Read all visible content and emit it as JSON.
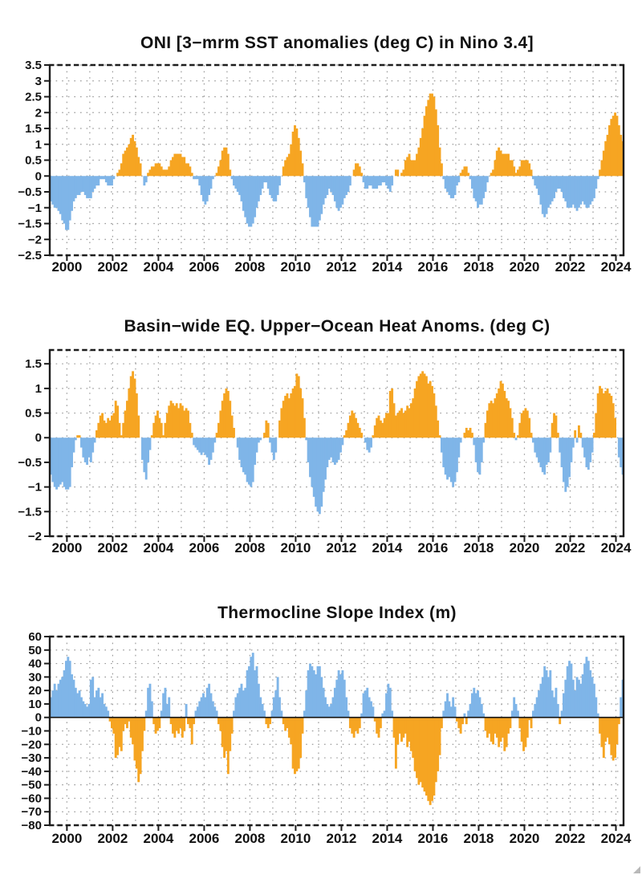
{
  "page": {
    "background": "#ffffff"
  },
  "misc": {
    "corner_mark_icon": "cursor-arrow-icon"
  },
  "chart_data": [
    {
      "type": "bar",
      "title": "ONI [3−mrm SST anomalies (deg C) in Nino 3.4]",
      "ylabel": "",
      "xlabel": "",
      "ylim": [
        -2.5,
        3.5
      ],
      "xlim": [
        1999.25,
        2024.3333
      ],
      "grid": true,
      "ytick_values": [
        3.5,
        3,
        2.5,
        2,
        1.5,
        1,
        0.5,
        0,
        -0.5,
        -1,
        -1.5,
        -2,
        -2.5
      ],
      "ytick_labels": [
        "3.5",
        "3",
        "2.5",
        "2",
        "1.5",
        "1",
        "0.5",
        "0",
        "−0.5",
        "−1",
        "−1.5",
        "−2",
        "−2.5"
      ],
      "xtick_values": [
        2000,
        2002,
        2004,
        2006,
        2008,
        2010,
        2012,
        2014,
        2016,
        2018,
        2020,
        2022,
        2024
      ],
      "xtick_labels": [
        "2000",
        "2002",
        "2004",
        "2006",
        "2008",
        "2010",
        "2012",
        "2014",
        "2016",
        "2018",
        "2020",
        "2022",
        "2024"
      ],
      "grid_year_start": 2000,
      "grid_year_end": 2024,
      "positive_color": "#F6A522",
      "negative_color": "#7FB5E8",
      "zero_line": false,
      "series_start": {
        "year": 1999,
        "month": 4
      },
      "values": [
        [
          -0.8,
          -0.9,
          -1.0,
          -1.0,
          -1.1,
          -1.2,
          -1.4,
          -1.5,
          -1.7
        ],
        [
          -1.7,
          -1.4,
          -1.1,
          -0.8,
          -0.7,
          -0.6,
          -0.6,
          -0.5,
          -0.5,
          -0.6,
          -0.7,
          -0.7
        ],
        [
          -0.7,
          -0.5,
          -0.4,
          -0.3,
          -0.3,
          -0.1,
          -0.1,
          -0.1,
          -0.2,
          -0.3,
          -0.3,
          -0.3
        ],
        [
          -0.1,
          0.0,
          0.1,
          0.2,
          0.4,
          0.7,
          0.8,
          0.9,
          1.0,
          1.2,
          1.3,
          1.1
        ],
        [
          0.9,
          0.6,
          0.4,
          0.0,
          -0.3,
          -0.2,
          0.1,
          0.2,
          0.3,
          0.3,
          0.4,
          0.4
        ],
        [
          0.4,
          0.3,
          0.2,
          0.2,
          0.2,
          0.3,
          0.5,
          0.6,
          0.7,
          0.7,
          0.7,
          0.7
        ],
        [
          0.6,
          0.6,
          0.4,
          0.4,
          0.3,
          0.1,
          -0.1,
          -0.1,
          -0.1,
          -0.3,
          -0.6,
          -0.8
        ],
        [
          -0.9,
          -0.8,
          -0.6,
          -0.4,
          -0.1,
          0.0,
          0.1,
          0.3,
          0.5,
          0.8,
          0.9,
          0.9
        ],
        [
          0.7,
          0.2,
          -0.1,
          -0.3,
          -0.4,
          -0.5,
          -0.6,
          -0.8,
          -1.1,
          -1.3,
          -1.5,
          -1.6
        ],
        [
          -1.6,
          -1.5,
          -1.3,
          -1.0,
          -0.8,
          -0.6,
          -0.4,
          -0.2,
          -0.2,
          -0.4,
          -0.6,
          -0.7
        ],
        [
          -0.8,
          -0.8,
          -0.6,
          -0.3,
          0.0,
          0.3,
          0.5,
          0.6,
          0.7,
          1.0,
          1.4,
          1.6
        ],
        [
          1.5,
          1.2,
          0.8,
          0.4,
          -0.2,
          -0.7,
          -1.0,
          -1.3,
          -1.6,
          -1.6,
          -1.6,
          -1.6
        ],
        [
          -1.4,
          -1.2,
          -0.9,
          -0.7,
          -0.6,
          -0.4,
          -0.5,
          -0.6,
          -0.8,
          -1.0,
          -1.1,
          -1.0
        ],
        [
          -0.9,
          -0.7,
          -0.6,
          -0.5,
          -0.3,
          0.0,
          0.2,
          0.4,
          0.4,
          0.3,
          0.1,
          -0.2
        ],
        [
          -0.4,
          -0.4,
          -0.3,
          -0.3,
          -0.4,
          -0.4,
          -0.4,
          -0.3,
          -0.3,
          -0.2,
          -0.2,
          -0.3
        ],
        [
          -0.4,
          -0.5,
          -0.3,
          0.0,
          0.2,
          0.2,
          0.0,
          0.1,
          0.2,
          0.5,
          0.6,
          0.7
        ],
        [
          0.5,
          0.5,
          0.5,
          0.7,
          0.9,
          1.2,
          1.5,
          1.9,
          2.2,
          2.4,
          2.6,
          2.6
        ],
        [
          2.5,
          2.1,
          1.6,
          0.9,
          0.4,
          -0.1,
          -0.4,
          -0.5,
          -0.6,
          -0.7,
          -0.7,
          -0.6
        ],
        [
          -0.3,
          -0.2,
          0.1,
          0.2,
          0.3,
          0.3,
          0.1,
          -0.1,
          -0.4,
          -0.7,
          -0.8,
          -1.0
        ],
        [
          -0.9,
          -0.9,
          -0.7,
          -0.5,
          -0.2,
          0.0,
          0.1,
          0.2,
          0.5,
          0.8,
          0.9,
          0.8
        ],
        [
          0.7,
          0.7,
          0.7,
          0.7,
          0.5,
          0.5,
          0.3,
          0.1,
          0.2,
          0.3,
          0.5,
          0.5
        ],
        [
          0.5,
          0.5,
          0.4,
          0.2,
          -0.1,
          -0.3,
          -0.4,
          -0.6,
          -0.9,
          -1.2,
          -1.3,
          -1.2
        ],
        [
          -1.0,
          -0.9,
          -0.8,
          -0.7,
          -0.5,
          -0.4,
          -0.4,
          -0.5,
          -0.7,
          -0.8,
          -1.0,
          -1.0
        ],
        [
          -1.0,
          -0.9,
          -1.0,
          -1.1,
          -1.0,
          -0.9,
          -0.8,
          -0.9,
          -1.0,
          -1.0,
          -0.9,
          -0.8
        ],
        [
          -0.7,
          -0.4,
          -0.1,
          0.2,
          0.5,
          0.8,
          1.1,
          1.3,
          1.6,
          1.8,
          1.9,
          2.0
        ],
        [
          1.9,
          1.6,
          1.3,
          1.1
        ]
      ]
    },
    {
      "type": "bar",
      "title": "Basin−wide EQ. Upper−Ocean Heat Anoms. (deg C)",
      "ylabel": "",
      "xlabel": "",
      "ylim": [
        -2,
        1.78
      ],
      "xlim": [
        1999.25,
        2024.3333
      ],
      "grid": true,
      "ytick_values": [
        1.5,
        1,
        0.5,
        0,
        -0.5,
        -1,
        -1.5,
        -2
      ],
      "ytick_labels": [
        "1.5",
        "1",
        "0.5",
        "0",
        "−0.5",
        "−1",
        "−1.5",
        "−2"
      ],
      "xtick_values": [
        2000,
        2002,
        2004,
        2006,
        2008,
        2010,
        2012,
        2014,
        2016,
        2018,
        2020,
        2022,
        2024
      ],
      "xtick_labels": [
        "2000",
        "2002",
        "2004",
        "2006",
        "2008",
        "2010",
        "2012",
        "2014",
        "2016",
        "2018",
        "2020",
        "2022",
        "2024"
      ],
      "grid_year_start": 2000,
      "grid_year_end": 2024,
      "positive_color": "#F6A522",
      "negative_color": "#7FB5E8",
      "zero_line": false,
      "series_start": {
        "year": 1999,
        "month": 4
      },
      "values": [
        [
          -0.75,
          -0.9,
          -1.0,
          -1.05,
          -1.0,
          -0.95,
          -0.9,
          -1.0,
          -1.05
        ],
        [
          -1.05,
          -1.0,
          -0.6,
          -0.3,
          -0.05,
          0.05,
          0.05,
          -0.2,
          -0.4,
          -0.5,
          -0.55,
          -0.4
        ],
        [
          -0.5,
          -0.3,
          -0.1,
          0.15,
          0.3,
          0.45,
          0.5,
          0.35,
          0.3,
          0.4,
          0.35,
          0.45
        ],
        [
          0.5,
          0.75,
          0.65,
          0.3,
          0.05,
          0.3,
          0.55,
          0.75,
          1.0,
          1.25,
          1.35,
          1.2
        ],
        [
          0.9,
          0.45,
          0.0,
          -0.45,
          -0.7,
          -0.85,
          -0.5,
          -0.25,
          0.05,
          0.3,
          0.45,
          0.55
        ],
        [
          0.4,
          0.3,
          0.05,
          0.3,
          0.5,
          0.65,
          0.75,
          0.7,
          0.65,
          0.7,
          0.6,
          0.7
        ],
        [
          0.65,
          0.55,
          0.6,
          0.55,
          0.3,
          0.1,
          -0.15,
          -0.2,
          -0.25,
          -0.3,
          -0.35,
          -0.3
        ],
        [
          -0.35,
          -0.4,
          -0.55,
          -0.45,
          -0.3,
          -0.1,
          0.1,
          0.3,
          0.55,
          0.75,
          0.9,
          1.0
        ],
        [
          0.95,
          0.75,
          0.45,
          0.2,
          0.0,
          -0.2,
          -0.45,
          -0.6,
          -0.7,
          -0.75,
          -0.9,
          -0.95
        ],
        [
          -1.0,
          -0.9,
          -0.55,
          -0.3,
          -0.1,
          -0.05,
          0.0,
          0.1,
          0.35,
          0.3,
          -0.1,
          -0.3
        ],
        [
          -0.45,
          -0.3,
          0.0,
          0.35,
          0.6,
          0.75,
          0.85,
          0.9,
          0.8,
          0.9,
          1.0,
          1.05
        ],
        [
          1.3,
          1.25,
          1.0,
          0.8,
          0.4,
          -0.05,
          -0.5,
          -0.8,
          -1.0,
          -1.2,
          -1.4,
          -1.5
        ],
        [
          -1.55,
          -1.4,
          -1.1,
          -0.85,
          -0.6,
          -0.45,
          -0.4,
          -0.5,
          -0.55,
          -0.5,
          -0.45,
          -0.3
        ],
        [
          -0.15,
          0.05,
          0.15,
          0.3,
          0.45,
          0.55,
          0.5,
          0.4,
          0.3,
          0.2,
          0.1,
          0.0
        ],
        [
          -0.1,
          -0.25,
          -0.3,
          -0.2,
          0.05,
          0.25,
          0.4,
          0.45,
          0.35,
          0.3,
          0.4,
          0.5
        ],
        [
          0.5,
          0.95,
          1.0,
          0.7,
          0.45,
          0.5,
          0.55,
          0.6,
          0.5,
          0.55,
          0.65,
          0.6
        ],
        [
          0.7,
          0.8,
          1.0,
          1.15,
          1.25,
          1.3,
          1.35,
          1.3,
          1.25,
          1.1,
          1.15,
          1.05
        ],
        [
          0.9,
          0.65,
          0.35,
          0.05,
          -0.3,
          -0.6,
          -0.75,
          -0.85,
          -0.8,
          -0.9,
          -1.0,
          -0.9
        ],
        [
          -0.7,
          -0.4,
          -0.1,
          0.0,
          0.1,
          0.2,
          0.15,
          0.2,
          0.1,
          -0.15,
          -0.5,
          -0.7
        ],
        [
          -0.75,
          -0.5,
          -0.1,
          0.3,
          0.55,
          0.7,
          0.75,
          0.7,
          0.8,
          0.9,
          1.0,
          1.15
        ],
        [
          1.1,
          0.95,
          0.8,
          0.75,
          0.6,
          0.4,
          0.1,
          -0.05,
          0.05,
          0.3,
          0.5,
          0.55
        ],
        [
          0.6,
          0.55,
          0.4,
          0.1,
          -0.1,
          -0.3,
          -0.4,
          -0.5,
          -0.6,
          -0.7,
          -0.75,
          -0.55
        ],
        [
          -0.5,
          -0.3,
          0.3,
          0.5,
          0.45,
          0.1,
          -0.3,
          -0.6,
          -0.9,
          -1.1,
          -1.0,
          -0.8
        ],
        [
          -0.5,
          -0.2,
          0.15,
          -0.1,
          0.25,
          0.1,
          -0.2,
          -0.4,
          -0.6,
          -0.65,
          -0.5,
          -0.3
        ],
        [
          0.1,
          0.5,
          0.9,
          1.05,
          1.0,
          0.9,
          0.95,
          1.0,
          0.9,
          0.85,
          0.7,
          0.4
        ],
        [
          0.0,
          -0.4,
          -0.6,
          -0.75
        ]
      ]
    },
    {
      "type": "bar",
      "title": "Thermocline Slope Index (m)",
      "ylabel": "",
      "xlabel": "",
      "ylim": [
        -80,
        60
      ],
      "xlim": [
        1999.25,
        2024.3333
      ],
      "grid": true,
      "ytick_values": [
        60,
        50,
        40,
        30,
        20,
        10,
        0,
        -10,
        -20,
        -30,
        -40,
        -50,
        -60,
        -70,
        -80
      ],
      "ytick_labels": [
        "60",
        "50",
        "40",
        "30",
        "20",
        "10",
        "0",
        "−10",
        "−20",
        "−30",
        "−40",
        "−50",
        "−60",
        "−70",
        "−80"
      ],
      "xtick_values": [
        2000,
        2002,
        2004,
        2006,
        2008,
        2010,
        2012,
        2014,
        2016,
        2018,
        2020,
        2022,
        2024
      ],
      "xtick_labels": [
        "2000",
        "2002",
        "2004",
        "2006",
        "2008",
        "2010",
        "2012",
        "2014",
        "2016",
        "2018",
        "2020",
        "2022",
        "2024"
      ],
      "grid_year_start": 2000,
      "grid_year_end": 2024,
      "positive_color": "#7FB5E8",
      "negative_color": "#F6A522",
      "zero_line": true,
      "series_start": {
        "year": 1999,
        "month": 4
      },
      "values": [
        [
          15,
          20,
          25,
          20,
          25,
          28,
          30,
          35,
          42
        ],
        [
          45,
          42,
          32,
          28,
          22,
          18,
          20,
          15,
          12,
          10,
          8,
          10
        ],
        [
          28,
          30,
          15,
          20,
          22,
          15,
          18,
          10,
          8,
          5,
          -3,
          -8
        ],
        [
          -12,
          -30,
          -28,
          -22,
          -25,
          -10,
          -5,
          -8,
          -3,
          -15,
          -20,
          -32
        ],
        [
          -38,
          -48,
          -42,
          -25,
          -10,
          5,
          22,
          25,
          12,
          -5,
          -12,
          -10
        ],
        [
          -8,
          5,
          18,
          22,
          10,
          15,
          -5,
          -12,
          -15,
          -10,
          -12,
          -8
        ],
        [
          -15,
          -10,
          10,
          -5,
          -8,
          -20,
          -5,
          5,
          8,
          12,
          15,
          18
        ],
        [
          15,
          22,
          25,
          18,
          12,
          8,
          5,
          -5,
          -10,
          -22,
          -30,
          -25
        ],
        [
          -42,
          -25,
          -12,
          5,
          15,
          18,
          22,
          25,
          20,
          22,
          35,
          38
        ],
        [
          45,
          48,
          35,
          38,
          25,
          15,
          10,
          5,
          -5,
          -8,
          -5,
          5
        ],
        [
          15,
          20,
          30,
          15,
          5,
          -5,
          -10,
          -8,
          -15,
          -20,
          -38,
          -42
        ],
        [
          -40,
          -38,
          -30,
          -12,
          5,
          20,
          35,
          40,
          38,
          35,
          32,
          38
        ],
        [
          38,
          30,
          22,
          15,
          10,
          8,
          10,
          15,
          22,
          28,
          35,
          32
        ],
        [
          35,
          28,
          15,
          5,
          -8,
          -12,
          -15,
          -10,
          -12,
          -8,
          3,
          18
        ],
        [
          20,
          22,
          15,
          12,
          8,
          -3,
          -12,
          -15,
          -8,
          3,
          5,
          18
        ],
        [
          25,
          22,
          5,
          -15,
          -38,
          -20,
          -12,
          -18,
          -15,
          -12,
          -22,
          -18
        ],
        [
          -25,
          -30,
          -40,
          -45,
          -50,
          -48,
          -52,
          -55,
          -58,
          -62,
          -65,
          -62
        ],
        [
          -58,
          -48,
          -40,
          -28,
          -8,
          5,
          12,
          18,
          12,
          8,
          15,
          8
        ],
        [
          -3,
          -8,
          -12,
          -5,
          3,
          -5,
          5,
          10,
          18,
          22,
          18,
          20
        ],
        [
          15,
          10,
          3,
          -10,
          -15,
          -12,
          -18,
          -20,
          -12,
          -15,
          -22,
          -18
        ],
        [
          -15,
          -25,
          -22,
          -12,
          -8,
          5,
          15,
          10,
          5,
          -8,
          -18,
          -25
        ],
        [
          -22,
          -15,
          -2,
          -8,
          5,
          10,
          15,
          20,
          25,
          30,
          38,
          35
        ],
        [
          30,
          35,
          20,
          15,
          22,
          10,
          -5,
          5,
          18,
          28,
          38,
          42
        ],
        [
          40,
          28,
          20,
          30,
          28,
          25,
          32,
          40,
          45,
          42,
          35,
          30
        ],
        [
          25,
          15,
          3,
          -12,
          -22,
          -30,
          -18,
          -15,
          -20,
          -28,
          -32,
          -30
        ],
        [
          -20,
          -5,
          15,
          28
        ]
      ]
    }
  ]
}
